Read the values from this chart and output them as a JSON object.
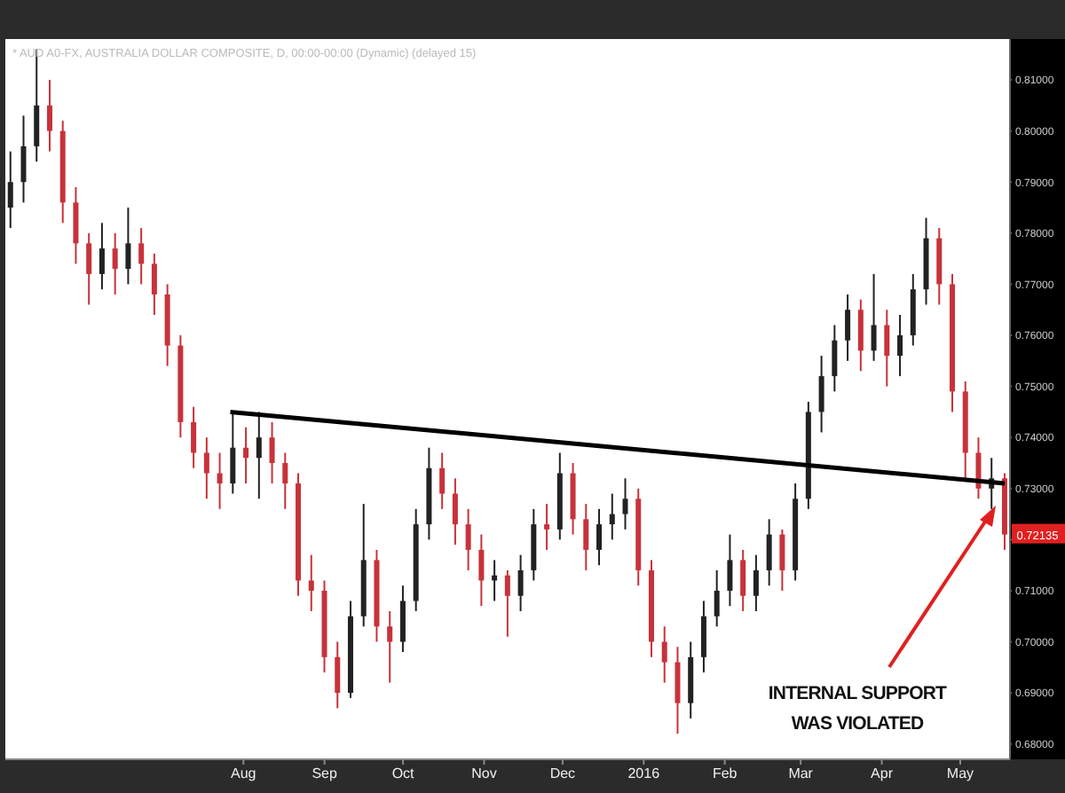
{
  "chart_data": {
    "type": "candlestick",
    "title": "* AUD A0-FX, AUSTRALIA DOLLAR COMPOSITE, D, 00:00-00:00 (Dynamic) (delayed 15)",
    "x": [
      "2015-05-04",
      "2015-05-09",
      "2015-05-14",
      "2015-05-19",
      "2015-05-24",
      "2015-05-29",
      "2015-06-03",
      "2015-06-08",
      "2015-06-13",
      "2015-06-18",
      "2015-06-23",
      "2015-06-28",
      "2015-07-03",
      "2015-07-08",
      "2015-07-13",
      "2015-07-18",
      "2015-07-23",
      "2015-07-28",
      "2015-08-02",
      "2015-08-07",
      "2015-08-12",
      "2015-08-17",
      "2015-08-22",
      "2015-08-27",
      "2015-09-01",
      "2015-09-06",
      "2015-09-11",
      "2015-09-16",
      "2015-09-21",
      "2015-09-26",
      "2015-10-01",
      "2015-10-06",
      "2015-10-11",
      "2015-10-16",
      "2015-10-21",
      "2015-10-26",
      "2015-10-31",
      "2015-11-05",
      "2015-11-10",
      "2015-11-15",
      "2015-11-20",
      "2015-11-25",
      "2015-11-30",
      "2015-12-05",
      "2015-12-10",
      "2015-12-15",
      "2015-12-20",
      "2015-12-25",
      "2015-12-30",
      "2016-01-04",
      "2016-01-09",
      "2016-01-14",
      "2016-01-19",
      "2016-01-24",
      "2016-01-29",
      "2016-02-03",
      "2016-02-08",
      "2016-02-13",
      "2016-02-18",
      "2016-02-23",
      "2016-02-28",
      "2016-03-04",
      "2016-03-09",
      "2016-03-14",
      "2016-03-19",
      "2016-03-24",
      "2016-03-29",
      "2016-04-03",
      "2016-04-08",
      "2016-04-13",
      "2016-04-18",
      "2016-04-23",
      "2016-04-28",
      "2016-05-03",
      "2016-05-08",
      "2016-05-13",
      "2016-05-18"
    ],
    "ohlc": [
      [
        0.785,
        0.796,
        0.781,
        0.79
      ],
      [
        0.79,
        0.803,
        0.786,
        0.797
      ],
      [
        0.797,
        0.816,
        0.794,
        0.805
      ],
      [
        0.805,
        0.81,
        0.796,
        0.8
      ],
      [
        0.8,
        0.802,
        0.782,
        0.786
      ],
      [
        0.786,
        0.789,
        0.774,
        0.778
      ],
      [
        0.778,
        0.78,
        0.766,
        0.772
      ],
      [
        0.772,
        0.782,
        0.769,
        0.777
      ],
      [
        0.777,
        0.78,
        0.768,
        0.773
      ],
      [
        0.773,
        0.785,
        0.77,
        0.778
      ],
      [
        0.778,
        0.781,
        0.77,
        0.774
      ],
      [
        0.774,
        0.776,
        0.764,
        0.768
      ],
      [
        0.768,
        0.77,
        0.754,
        0.758
      ],
      [
        0.758,
        0.76,
        0.74,
        0.743
      ],
      [
        0.743,
        0.746,
        0.734,
        0.737
      ],
      [
        0.737,
        0.74,
        0.728,
        0.733
      ],
      [
        0.733,
        0.737,
        0.726,
        0.731
      ],
      [
        0.731,
        0.745,
        0.729,
        0.738
      ],
      [
        0.738,
        0.742,
        0.731,
        0.736
      ],
      [
        0.736,
        0.745,
        0.728,
        0.74
      ],
      [
        0.74,
        0.743,
        0.731,
        0.735
      ],
      [
        0.735,
        0.737,
        0.726,
        0.731
      ],
      [
        0.731,
        0.733,
        0.709,
        0.712
      ],
      [
        0.712,
        0.717,
        0.706,
        0.71
      ],
      [
        0.71,
        0.712,
        0.694,
        0.697
      ],
      [
        0.697,
        0.7,
        0.687,
        0.69
      ],
      [
        0.69,
        0.708,
        0.689,
        0.705
      ],
      [
        0.705,
        0.727,
        0.703,
        0.716
      ],
      [
        0.716,
        0.718,
        0.7,
        0.703
      ],
      [
        0.703,
        0.706,
        0.692,
        0.7
      ],
      [
        0.7,
        0.711,
        0.698,
        0.708
      ],
      [
        0.708,
        0.726,
        0.706,
        0.723
      ],
      [
        0.723,
        0.738,
        0.72,
        0.734
      ],
      [
        0.734,
        0.737,
        0.726,
        0.729
      ],
      [
        0.729,
        0.732,
        0.719,
        0.723
      ],
      [
        0.723,
        0.726,
        0.714,
        0.718
      ],
      [
        0.718,
        0.721,
        0.707,
        0.712
      ],
      [
        0.712,
        0.716,
        0.708,
        0.713
      ],
      [
        0.713,
        0.714,
        0.701,
        0.709
      ],
      [
        0.709,
        0.717,
        0.706,
        0.714
      ],
      [
        0.714,
        0.726,
        0.712,
        0.723
      ],
      [
        0.723,
        0.727,
        0.718,
        0.722
      ],
      [
        0.722,
        0.737,
        0.72,
        0.733
      ],
      [
        0.733,
        0.735,
        0.721,
        0.724
      ],
      [
        0.724,
        0.727,
        0.714,
        0.718
      ],
      [
        0.718,
        0.726,
        0.715,
        0.723
      ],
      [
        0.723,
        0.729,
        0.72,
        0.725
      ],
      [
        0.725,
        0.732,
        0.722,
        0.728
      ],
      [
        0.728,
        0.73,
        0.711,
        0.714
      ],
      [
        0.714,
        0.716,
        0.697,
        0.7
      ],
      [
        0.7,
        0.703,
        0.692,
        0.696
      ],
      [
        0.696,
        0.699,
        0.682,
        0.688
      ],
      [
        0.688,
        0.7,
        0.685,
        0.697
      ],
      [
        0.697,
        0.708,
        0.694,
        0.705
      ],
      [
        0.705,
        0.714,
        0.703,
        0.71
      ],
      [
        0.71,
        0.721,
        0.707,
        0.716
      ],
      [
        0.716,
        0.718,
        0.706,
        0.709
      ],
      [
        0.709,
        0.717,
        0.706,
        0.714
      ],
      [
        0.714,
        0.724,
        0.711,
        0.721
      ],
      [
        0.721,
        0.722,
        0.71,
        0.714
      ],
      [
        0.714,
        0.731,
        0.712,
        0.728
      ],
      [
        0.728,
        0.747,
        0.726,
        0.745
      ],
      [
        0.745,
        0.756,
        0.741,
        0.752
      ],
      [
        0.752,
        0.762,
        0.749,
        0.759
      ],
      [
        0.759,
        0.768,
        0.755,
        0.765
      ],
      [
        0.765,
        0.767,
        0.753,
        0.757
      ],
      [
        0.757,
        0.772,
        0.755,
        0.762
      ],
      [
        0.762,
        0.765,
        0.75,
        0.756
      ],
      [
        0.756,
        0.764,
        0.752,
        0.76
      ],
      [
        0.76,
        0.772,
        0.758,
        0.769
      ],
      [
        0.769,
        0.783,
        0.766,
        0.779
      ],
      [
        0.779,
        0.781,
        0.766,
        0.77
      ],
      [
        0.77,
        0.772,
        0.745,
        0.749
      ],
      [
        0.749,
        0.751,
        0.732,
        0.737
      ],
      [
        0.737,
        0.74,
        0.728,
        0.73
      ],
      [
        0.73,
        0.736,
        0.726,
        0.732
      ],
      [
        0.732,
        0.733,
        0.718,
        0.721
      ]
    ],
    "colors": [
      "#222222",
      "#222222",
      "#222222",
      "#c8323a",
      "#c8323a",
      "#c8323a",
      "#c8323a",
      "#222222",
      "#c8323a",
      "#222222",
      "#c8323a",
      "#c8323a",
      "#c8323a",
      "#c8323a",
      "#c8323a",
      "#c8323a",
      "#c8323a",
      "#222222",
      "#c8323a",
      "#222222",
      "#c8323a",
      "#c8323a",
      "#c8323a",
      "#c8323a",
      "#c8323a",
      "#c8323a",
      "#222222",
      "#222222",
      "#c8323a",
      "#c8323a",
      "#222222",
      "#222222",
      "#222222",
      "#c8323a",
      "#c8323a",
      "#c8323a",
      "#c8323a",
      "#222222",
      "#c8323a",
      "#222222",
      "#222222",
      "#c8323a",
      "#222222",
      "#c8323a",
      "#c8323a",
      "#222222",
      "#222222",
      "#222222",
      "#c8323a",
      "#c8323a",
      "#c8323a",
      "#c8323a",
      "#222222",
      "#222222",
      "#222222",
      "#222222",
      "#c8323a",
      "#222222",
      "#222222",
      "#c8323a",
      "#222222",
      "#222222",
      "#222222",
      "#222222",
      "#222222",
      "#c8323a",
      "#222222",
      "#c8323a",
      "#222222",
      "#222222",
      "#222222",
      "#c8323a",
      "#c8323a",
      "#c8323a",
      "#c8323a",
      "#222222",
      "#c8323a"
    ],
    "series": [
      {
        "type": "line",
        "x": [
          "2015-07-27",
          "2016-05-18"
        ],
        "values": [
          0.745,
          0.731
        ],
        "color": "#000000"
      }
    ],
    "xlim": [
      "2015-05-02",
      "2016-05-20"
    ],
    "xticks": [
      {
        "value": "2015-08-01",
        "label": "Aug"
      },
      {
        "value": "2015-09-01",
        "label": "Sep"
      },
      {
        "value": "2015-10-01",
        "label": "Oct"
      },
      {
        "value": "2015-11-01",
        "label": "Nov"
      },
      {
        "value": "2015-12-01",
        "label": "Dec"
      },
      {
        "value": "2016-01-01",
        "label": "2016"
      },
      {
        "value": "2016-02-01",
        "label": "Feb"
      },
      {
        "value": "2016-03-01",
        "label": "Mar"
      },
      {
        "value": "2016-04-01",
        "label": "Apr"
      },
      {
        "value": "2016-05-01",
        "label": "May"
      }
    ],
    "ylim": [
      0.677,
      0.818
    ],
    "yticks": [
      {
        "value": 0.68,
        "label": "0.68000"
      },
      {
        "value": 0.69,
        "label": "0.69000"
      },
      {
        "value": 0.7,
        "label": "0.70000"
      },
      {
        "value": 0.71,
        "label": "0.71000"
      },
      {
        "value": 0.72,
        "label": null
      },
      {
        "value": 0.73,
        "label": "0.73000"
      },
      {
        "value": 0.74,
        "label": "0.74000"
      },
      {
        "value": 0.75,
        "label": "0.75000"
      },
      {
        "value": 0.76,
        "label": "0.76000"
      },
      {
        "value": 0.77,
        "label": "0.77000"
      },
      {
        "value": 0.78,
        "label": "0.78000"
      },
      {
        "value": 0.79,
        "label": "0.79000"
      },
      {
        "value": 0.8,
        "label": "0.80000"
      },
      {
        "value": 0.81,
        "label": "0.81000"
      }
    ],
    "annotations": [
      "INTERNAL SUPPORT\nWAS VIOLATED",
      "0.72135"
    ]
  }
}
